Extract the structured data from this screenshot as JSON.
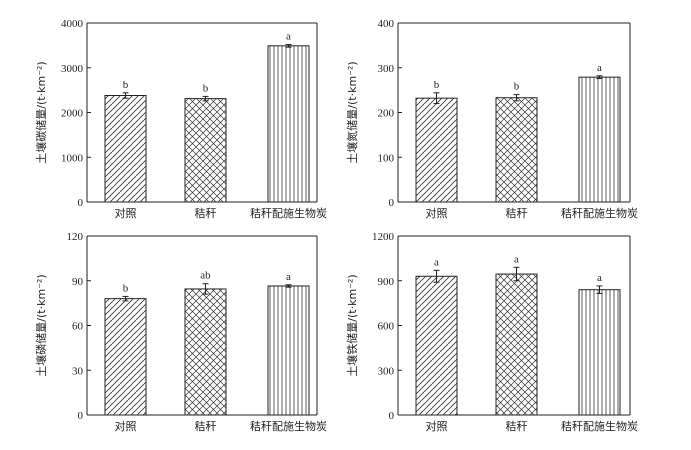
{
  "chart_data": [
    {
      "type": "bar",
      "ylabel": "土壤碳储量/(t·km⁻²)",
      "ylim": [
        0,
        4000
      ],
      "yticks": [
        0,
        1000,
        2000,
        3000,
        4000
      ],
      "categories": [
        "对照",
        "秸秆",
        "秸秆配施生物炭"
      ],
      "values": [
        2380,
        2310,
        3490
      ],
      "errors": [
        60,
        50,
        30
      ],
      "significance": [
        "b",
        "b",
        "a"
      ],
      "patterns": [
        "diagonal",
        "crosshatch",
        "vertical"
      ]
    },
    {
      "type": "bar",
      "ylabel": "土壤氮储量/(t·km⁻²)",
      "ylim": [
        0,
        400
      ],
      "yticks": [
        0,
        100,
        200,
        300,
        400
      ],
      "categories": [
        "对照",
        "秸秆",
        "秸秆配施生物炭"
      ],
      "values": [
        232,
        233,
        279
      ],
      "errors": [
        12,
        7,
        3
      ],
      "significance": [
        "b",
        "b",
        "a"
      ],
      "patterns": [
        "diagonal",
        "crosshatch",
        "vertical"
      ]
    },
    {
      "type": "bar",
      "ylabel": "土壤磷储量/(t·km⁻²)",
      "ylim": [
        0,
        120
      ],
      "yticks": [
        0,
        30,
        60,
        90,
        120
      ],
      "categories": [
        "对照",
        "秸秆",
        "秸秆配施生物炭"
      ],
      "values": [
        78,
        84.5,
        86.5
      ],
      "errors": [
        1.5,
        3.5,
        0.8
      ],
      "significance": [
        "b",
        "ab",
        "a"
      ],
      "patterns": [
        "diagonal",
        "crosshatch",
        "vertical"
      ]
    },
    {
      "type": "bar",
      "ylabel": "土壤铁储量/(t·km⁻²)",
      "ylim": [
        0,
        1200
      ],
      "yticks": [
        0,
        300,
        600,
        900,
        1200
      ],
      "categories": [
        "对照",
        "秸秆",
        "秸秆配施生物炭"
      ],
      "values": [
        930,
        945,
        840
      ],
      "errors": [
        40,
        45,
        25
      ],
      "significance": [
        "a",
        "a",
        "a"
      ],
      "patterns": [
        "diagonal",
        "crosshatch",
        "vertical"
      ]
    }
  ]
}
